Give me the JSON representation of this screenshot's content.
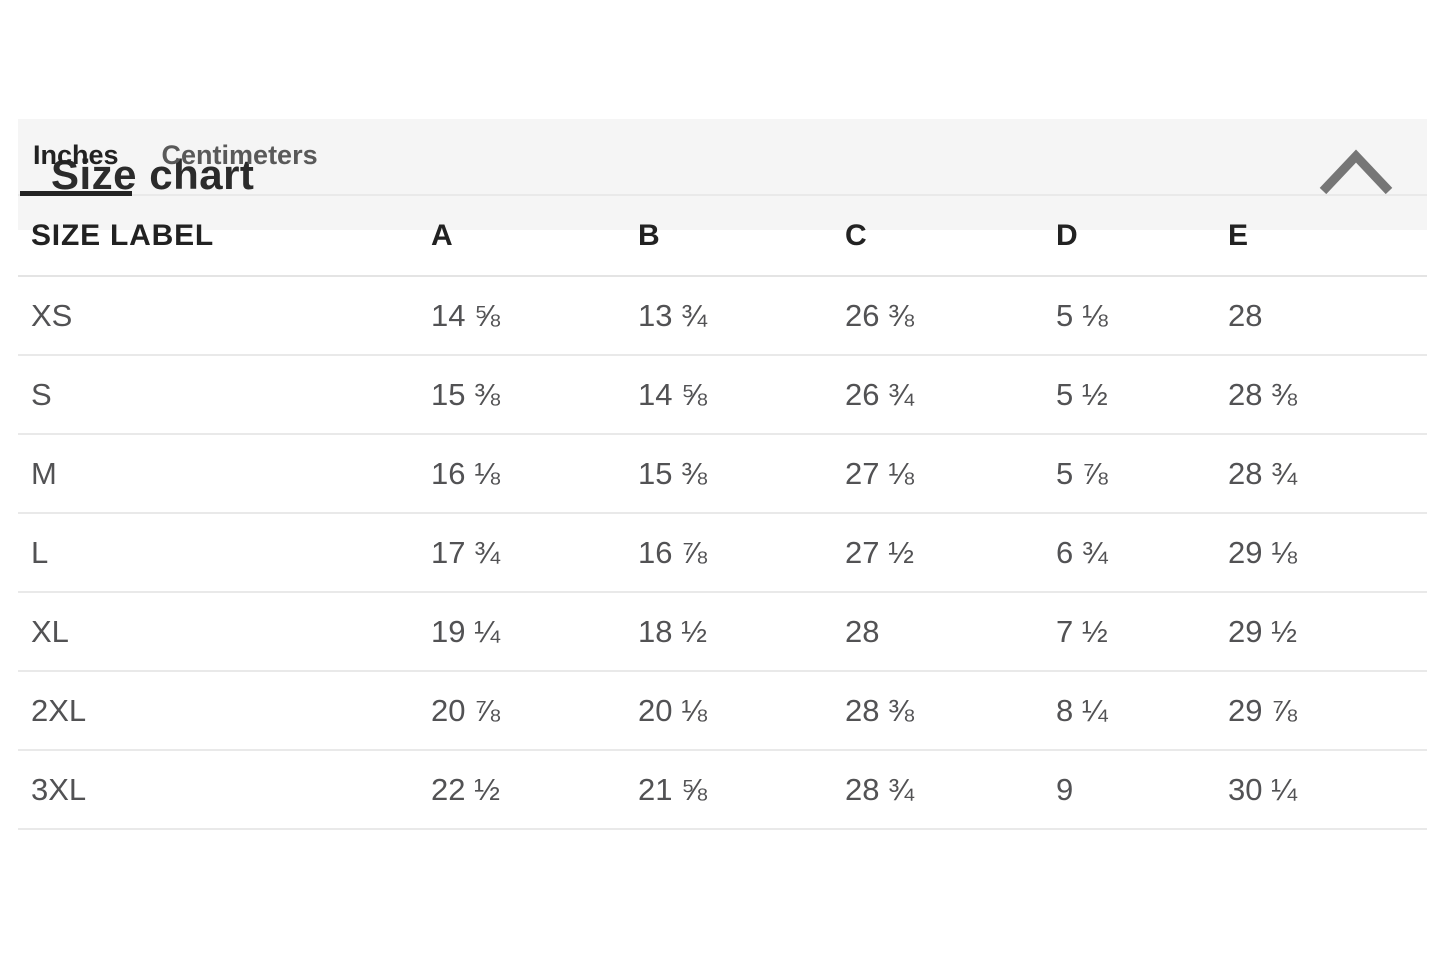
{
  "header": {
    "title": "Size chart",
    "collapse_icon": "chevron-up",
    "collapsed": false
  },
  "tabs": {
    "items": [
      {
        "label": "Inches",
        "active": true
      },
      {
        "label": "Centimeters",
        "active": false
      }
    ]
  },
  "table": {
    "columns": [
      "SIZE LABEL",
      "A",
      "B",
      "C",
      "D",
      "E"
    ],
    "rows": [
      {
        "size": "XS",
        "values": [
          "14 ⅝",
          "13 ¾",
          "26 ⅜",
          "5 ⅛",
          "28"
        ]
      },
      {
        "size": "S",
        "values": [
          "15 ⅜",
          "14 ⅝",
          "26 ¾",
          "5 ½",
          "28 ⅜"
        ]
      },
      {
        "size": "M",
        "values": [
          "16 ⅛",
          "15 ⅜",
          "27 ⅛",
          "5 ⅞",
          "28 ¾"
        ]
      },
      {
        "size": "L",
        "values": [
          "17 ¾",
          "16 ⅞",
          "27 ½",
          "6 ¾",
          "29 ⅛"
        ]
      },
      {
        "size": "XL",
        "values": [
          "19 ¼",
          "18 ½",
          "28",
          "7 ½",
          "29 ½"
        ]
      },
      {
        "size": "2XL",
        "values": [
          "20 ⅞",
          "20 ⅛",
          "28 ⅜",
          "8 ¼",
          "29 ⅞"
        ]
      },
      {
        "size": "3XL",
        "values": [
          "22 ½",
          "21 ⅝",
          "28 ¾",
          "9",
          "30 ¼"
        ]
      }
    ]
  },
  "colors": {
    "header_bg": "#f5f5f5",
    "accent_dark": "#232323",
    "divider": "#e9e9e9",
    "title_text": "#2b2b2b",
    "data_text": "#525254",
    "inactive_tab_text": "#595959",
    "chevron": "#767676"
  }
}
